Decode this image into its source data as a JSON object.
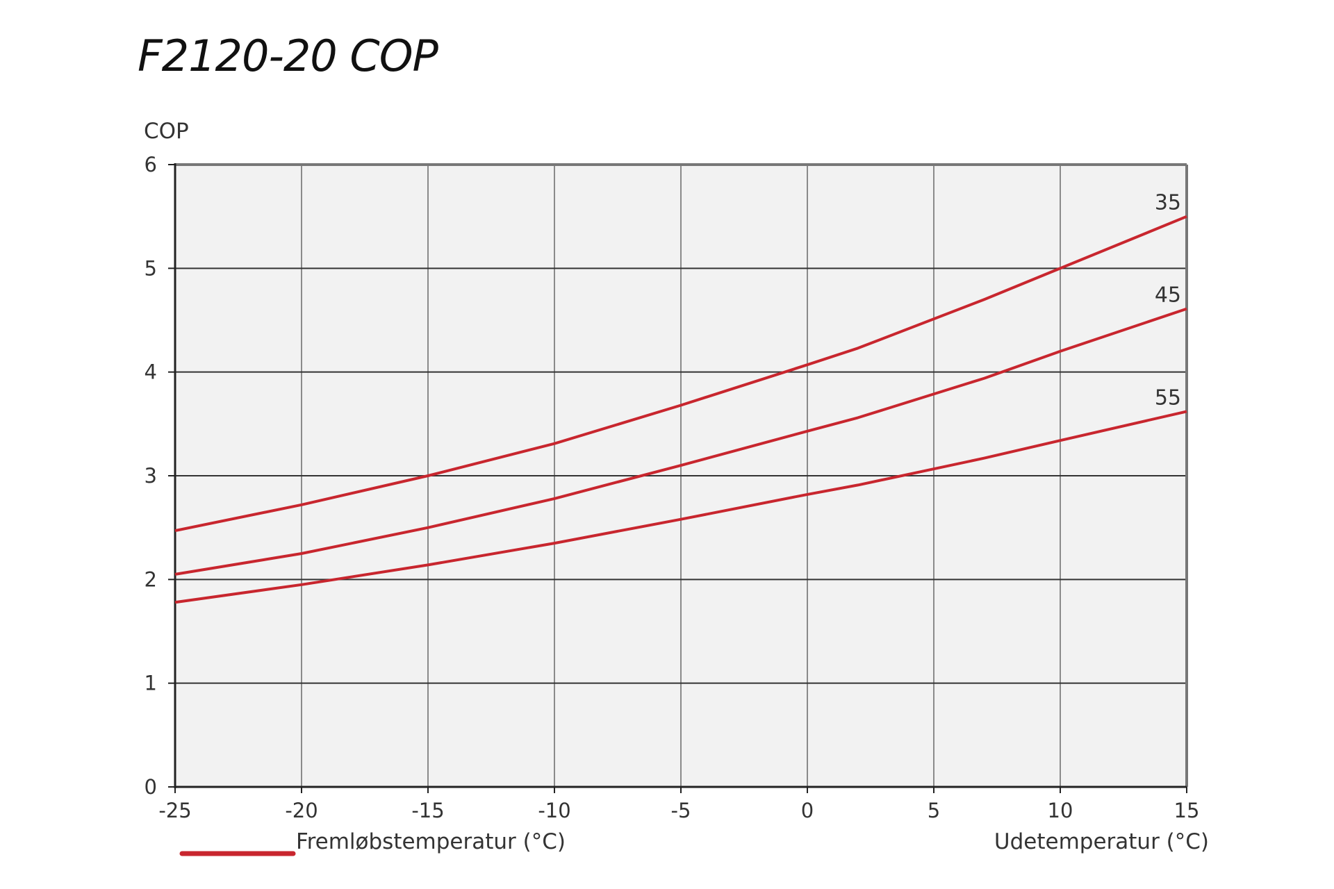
{
  "chart_data": {
    "type": "line",
    "title": "F2120-20 COP",
    "ylabel": "COP",
    "xlabel": "Udetemperatur (°C)",
    "legend": {
      "label": "Fremløbstemperatur (°C)",
      "color": "#c8262e",
      "placement": "bottom-left"
    },
    "xlim": [
      -25,
      15
    ],
    "ylim": [
      0,
      6
    ],
    "xticks": [
      -25,
      -20,
      -15,
      -10,
      -5,
      0,
      5,
      10,
      15
    ],
    "yticks": [
      0,
      1,
      2,
      3,
      4,
      5,
      6
    ],
    "grid": true,
    "colors": {
      "plot_background": "#f2f2f2",
      "series": "#c8262e",
      "grid": "#555555"
    },
    "x": [
      -25,
      -20,
      -15,
      -10,
      -5,
      0,
      2,
      7,
      10,
      15
    ],
    "series": [
      {
        "name": "35",
        "values": [
          2.47,
          2.72,
          3.0,
          3.31,
          3.68,
          4.07,
          4.23,
          4.7,
          5.0,
          5.5
        ]
      },
      {
        "name": "45",
        "values": [
          2.05,
          2.25,
          2.5,
          2.78,
          3.1,
          3.43,
          3.56,
          3.94,
          4.2,
          4.61
        ]
      },
      {
        "name": "55",
        "values": [
          1.78,
          1.95,
          2.14,
          2.35,
          2.58,
          2.82,
          2.91,
          3.17,
          3.34,
          3.62
        ]
      }
    ]
  }
}
